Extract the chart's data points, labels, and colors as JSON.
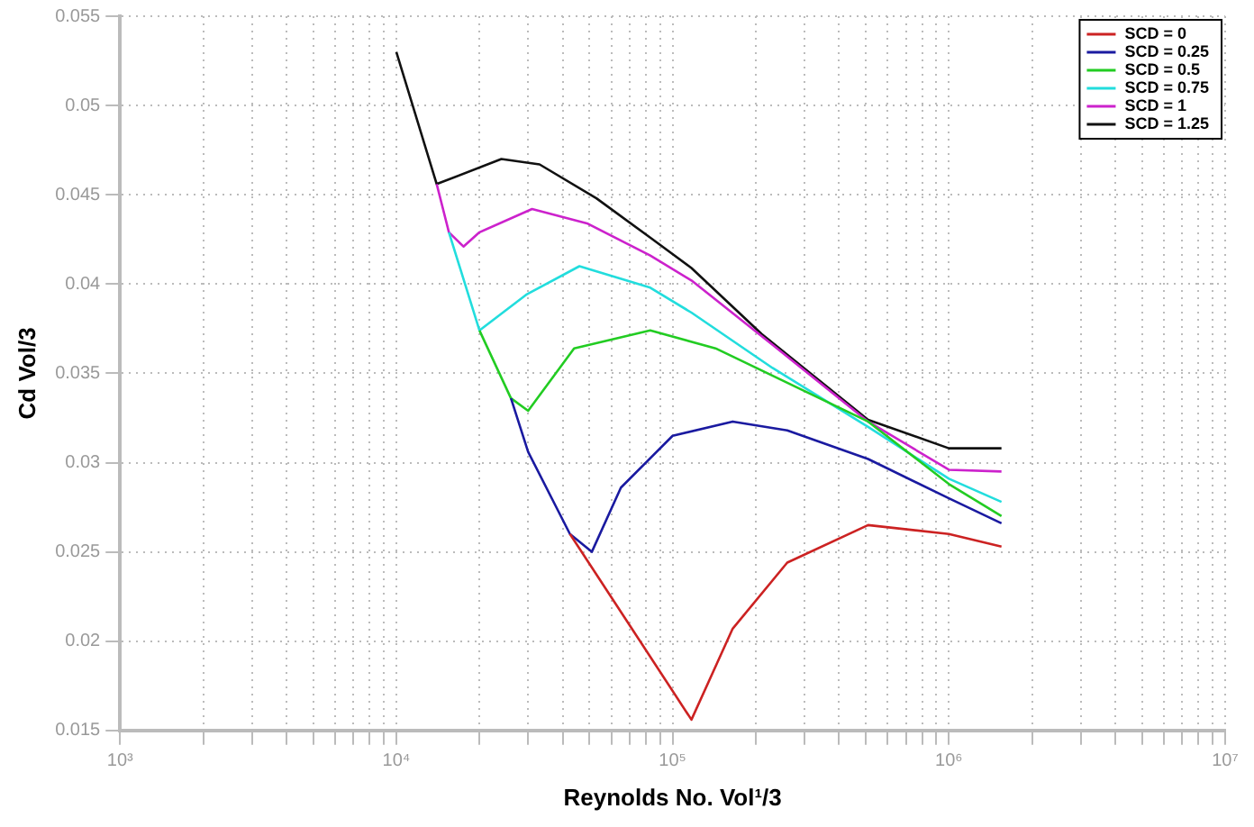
{
  "chart_data": {
    "type": "line",
    "xlabel": "Reynolds No. Vol¹/3",
    "ylabel": "Cd Vol/3",
    "log": "x",
    "grid": true,
    "legend": "top right",
    "marker": "none",
    "line_style": "solid",
    "xlim": [
      1000,
      10000000
    ],
    "ylim": [
      0.015,
      0.055
    ],
    "xticks": [
      {
        "value": 1000,
        "label": "10³"
      },
      {
        "value": 2000,
        "label": null
      },
      {
        "value": 3000,
        "label": null
      },
      {
        "value": 4000,
        "label": null
      },
      {
        "value": 5000,
        "label": null
      },
      {
        "value": 6000,
        "label": null
      },
      {
        "value": 7000,
        "label": null
      },
      {
        "value": 8000,
        "label": null
      },
      {
        "value": 9000,
        "label": null
      },
      {
        "value": 10000,
        "label": "10⁴"
      },
      {
        "value": 20000,
        "label": null
      },
      {
        "value": 30000,
        "label": null
      },
      {
        "value": 40000,
        "label": null
      },
      {
        "value": 50000,
        "label": null
      },
      {
        "value": 60000,
        "label": null
      },
      {
        "value": 70000,
        "label": null
      },
      {
        "value": 80000,
        "label": null
      },
      {
        "value": 90000,
        "label": null
      },
      {
        "value": 100000,
        "label": "10⁵"
      },
      {
        "value": 200000,
        "label": null
      },
      {
        "value": 300000,
        "label": null
      },
      {
        "value": 400000,
        "label": null
      },
      {
        "value": 500000,
        "label": null
      },
      {
        "value": 600000,
        "label": null
      },
      {
        "value": 700000,
        "label": null
      },
      {
        "value": 800000,
        "label": null
      },
      {
        "value": 900000,
        "label": null
      },
      {
        "value": 1000000,
        "label": "10⁶"
      },
      {
        "value": 2000000,
        "label": null
      },
      {
        "value": 3000000,
        "label": null
      },
      {
        "value": 4000000,
        "label": null
      },
      {
        "value": 5000000,
        "label": null
      },
      {
        "value": 6000000,
        "label": null
      },
      {
        "value": 7000000,
        "label": null
      },
      {
        "value": 8000000,
        "label": null
      },
      {
        "value": 9000000,
        "label": null
      },
      {
        "value": 10000000,
        "label": "10⁷"
      }
    ],
    "yticks": [
      0.015,
      0.02,
      0.025,
      0.03,
      0.035,
      0.04,
      0.045,
      0.05,
      0.055
    ],
    "series": [
      {
        "name": "SCD = 0",
        "color": "#cc2222",
        "x": [
          42500,
          117000,
          165000,
          260000,
          510000,
          1000000,
          1550000
        ],
        "values": [
          0.026,
          0.0156,
          0.0207,
          0.0244,
          0.0265,
          0.026,
          0.0253
        ]
      },
      {
        "name": "SCD = 0.25",
        "color": "#1a1aa0",
        "x": [
          26000,
          30000,
          42500,
          51000,
          65000,
          100000,
          165000,
          260000,
          510000,
          1000000,
          1550000
        ],
        "values": [
          0.0336,
          0.0306,
          0.026,
          0.025,
          0.0286,
          0.0315,
          0.0323,
          0.0318,
          0.0302,
          0.028,
          0.0266
        ]
      },
      {
        "name": "SCD = 0.5",
        "color": "#22cc22",
        "x": [
          20000,
          26000,
          30000,
          44000,
          83000,
          143000,
          310000,
          510000,
          1000000,
          1550000
        ],
        "values": [
          0.0374,
          0.0336,
          0.0329,
          0.0364,
          0.0374,
          0.0364,
          0.0339,
          0.0323,
          0.0288,
          0.027
        ]
      },
      {
        "name": "SCD = 0.75",
        "color": "#22dddd",
        "x": [
          15500,
          20000,
          29500,
          46000,
          83000,
          117000,
          230000,
          510000,
          1000000,
          1550000
        ],
        "values": [
          0.0429,
          0.0374,
          0.0394,
          0.041,
          0.0398,
          0.0384,
          0.0353,
          0.032,
          0.0291,
          0.0278
        ]
      },
      {
        "name": "SCD = 1",
        "color": "#cc22cc",
        "x": [
          14000,
          15500,
          17500,
          20000,
          31000,
          49000,
          83000,
          117000,
          230000,
          510000,
          1000000,
          1550000
        ],
        "values": [
          0.0456,
          0.0429,
          0.0421,
          0.0429,
          0.0442,
          0.0434,
          0.0416,
          0.0402,
          0.0366,
          0.0323,
          0.0296,
          0.0295
        ]
      },
      {
        "name": "SCD = 1.25",
        "color": "#111111",
        "x": [
          10000,
          14000,
          24000,
          33000,
          53000,
          83000,
          117000,
          210000,
          510000,
          1000000,
          1550000
        ],
        "values": [
          0.053,
          0.0456,
          0.047,
          0.0467,
          0.0448,
          0.0426,
          0.0409,
          0.0372,
          0.0324,
          0.0308,
          0.0308
        ]
      }
    ]
  }
}
